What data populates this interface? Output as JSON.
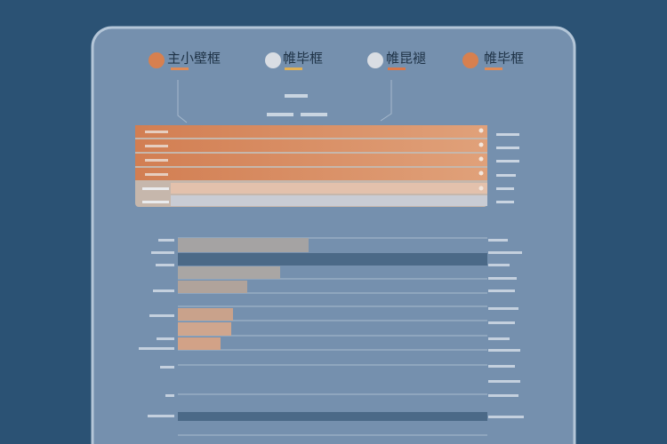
{
  "tabs": [
    {
      "label": "主小壁框"
    },
    {
      "label": "帷毕框"
    },
    {
      "label": "帷昆褪"
    },
    {
      "label": "帷毕框"
    }
  ]
}
